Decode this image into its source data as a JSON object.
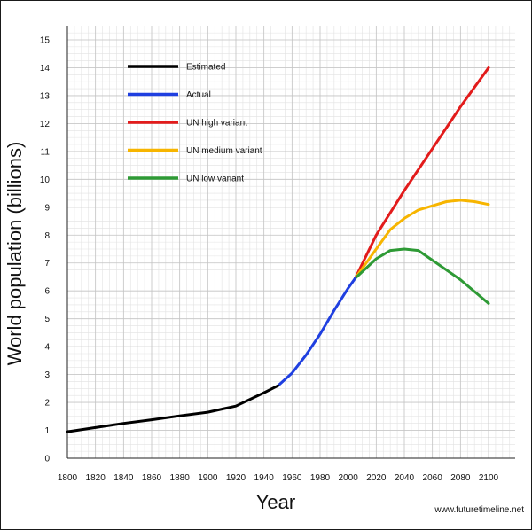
{
  "chart_data": {
    "type": "line",
    "xlabel": "Year",
    "ylabel": "World population (billions)",
    "xlim": [
      1800,
      2100
    ],
    "ylim": [
      0,
      15
    ],
    "x_ticks": [
      1800,
      1820,
      1840,
      1860,
      1880,
      1900,
      1920,
      1940,
      1960,
      1980,
      2000,
      2020,
      2040,
      2060,
      2080,
      2100
    ],
    "y_ticks": [
      0,
      1,
      2,
      3,
      4,
      5,
      6,
      7,
      8,
      9,
      10,
      11,
      12,
      13,
      14,
      15
    ],
    "grid": true,
    "legend_position": "top-left",
    "series": [
      {
        "name": "Estimated",
        "color": "#000000",
        "points": [
          [
            1800,
            0.95
          ],
          [
            1820,
            1.1
          ],
          [
            1840,
            1.25
          ],
          [
            1860,
            1.38
          ],
          [
            1880,
            1.52
          ],
          [
            1900,
            1.65
          ],
          [
            1920,
            1.87
          ],
          [
            1940,
            2.35
          ],
          [
            1950,
            2.6
          ]
        ]
      },
      {
        "name": "Actual",
        "color": "#1f3fe0",
        "points": [
          [
            1950,
            2.6
          ],
          [
            1960,
            3.05
          ],
          [
            1970,
            3.7
          ],
          [
            1980,
            4.45
          ],
          [
            1990,
            5.3
          ],
          [
            2000,
            6.1
          ],
          [
            2005,
            6.45
          ]
        ]
      },
      {
        "name": "UN high variant",
        "color": "#e21b1b",
        "points": [
          [
            2005,
            6.45
          ],
          [
            2020,
            8.0
          ],
          [
            2040,
            9.6
          ],
          [
            2060,
            11.1
          ],
          [
            2080,
            12.6
          ],
          [
            2100,
            14.0
          ]
        ]
      },
      {
        "name": "UN medium variant",
        "color": "#f7b500",
        "points": [
          [
            2005,
            6.45
          ],
          [
            2020,
            7.5
          ],
          [
            2030,
            8.2
          ],
          [
            2040,
            8.6
          ],
          [
            2050,
            8.9
          ],
          [
            2060,
            9.05
          ],
          [
            2070,
            9.2
          ],
          [
            2080,
            9.25
          ],
          [
            2090,
            9.2
          ],
          [
            2100,
            9.1
          ]
        ]
      },
      {
        "name": "UN low variant",
        "color": "#2e9a35",
        "points": [
          [
            2005,
            6.45
          ],
          [
            2020,
            7.15
          ],
          [
            2030,
            7.45
          ],
          [
            2040,
            7.5
          ],
          [
            2050,
            7.45
          ],
          [
            2060,
            7.1
          ],
          [
            2080,
            6.4
          ],
          [
            2100,
            5.55
          ]
        ]
      }
    ]
  },
  "credit": "www.futuretimeline.net"
}
